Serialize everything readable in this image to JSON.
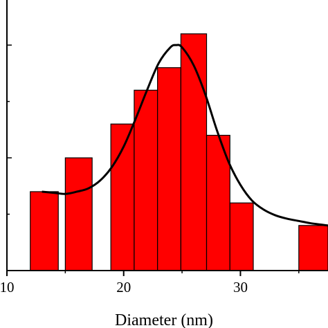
{
  "chart_data": {
    "type": "bar",
    "subtype": "histogram-with-fit-curve",
    "title": "",
    "xlabel": "Diameter (nm)",
    "ylabel": "",
    "xlim": [
      10,
      37.5
    ],
    "ylim": [
      0,
      12
    ],
    "x_ticks": [
      10,
      20,
      30
    ],
    "x_tick_labels": [
      "10",
      "20",
      "30"
    ],
    "y_ticks": [
      0,
      2.5,
      5,
      7.5,
      10
    ],
    "y_tick_labels": [],
    "grid": false,
    "legend": "none",
    "colors": {
      "bar_fill": "#ff0000",
      "bar_stroke": "#000000",
      "curve": "#000000",
      "axis": "#000000"
    },
    "bins": [
      {
        "x0": 12,
        "x1": 14.4,
        "value": 3.5
      },
      {
        "x0": 15,
        "x1": 17.3,
        "value": 5
      },
      {
        "x0": 18.9,
        "x1": 20.9,
        "value": 6.5
      },
      {
        "x0": 20.9,
        "x1": 22.9,
        "value": 8
      },
      {
        "x0": 22.9,
        "x1": 24.9,
        "value": 9
      },
      {
        "x0": 24.9,
        "x1": 27.1,
        "value": 10.5
      },
      {
        "x0": 27.1,
        "x1": 29.1,
        "value": 6
      },
      {
        "x0": 29.1,
        "x1": 31.1,
        "value": 3
      },
      {
        "x0": 35,
        "x1": 37.5,
        "value": 2
      }
    ],
    "fit_curve": {
      "x": [
        13,
        14,
        15,
        16,
        17,
        18,
        19,
        20,
        21,
        22,
        23,
        24,
        24.5,
        25,
        26,
        27,
        28,
        29,
        30,
        31,
        32,
        33,
        34,
        35,
        36,
        37.5
      ],
      "y": [
        3.5,
        3.45,
        3.4,
        3.5,
        3.65,
        4.0,
        4.6,
        5.5,
        6.7,
        8.0,
        9.2,
        9.9,
        10.0,
        9.9,
        9.1,
        7.8,
        6.2,
        4.8,
        3.8,
        3.1,
        2.7,
        2.45,
        2.3,
        2.2,
        2.1,
        2.0
      ]
    }
  }
}
